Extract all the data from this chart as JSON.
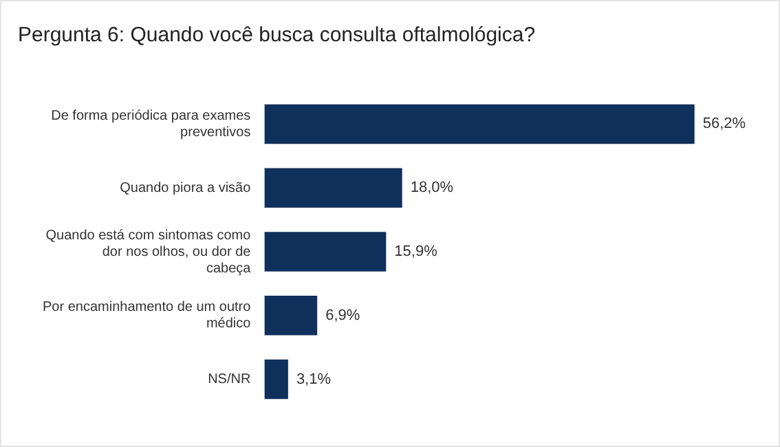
{
  "chart_data": {
    "type": "bar",
    "orientation": "horizontal",
    "title": "Pergunta 6: Quando você busca consulta oftalmológica?",
    "categories": [
      "De forma periódica para exames preventivos",
      "Quando piora a visão",
      "Quando está com sintomas como dor nos olhos, ou dor de cabeça",
      "Por encaminhamento de um outro médico",
      "NS/NR"
    ],
    "values": [
      56.2,
      18.0,
      15.9,
      6.9,
      3.1
    ],
    "value_labels": [
      "56,2%",
      "18,0%",
      "15,9%",
      "6,9%",
      "3,1%"
    ],
    "color": "#10305c",
    "grid": false,
    "legend": false
  }
}
